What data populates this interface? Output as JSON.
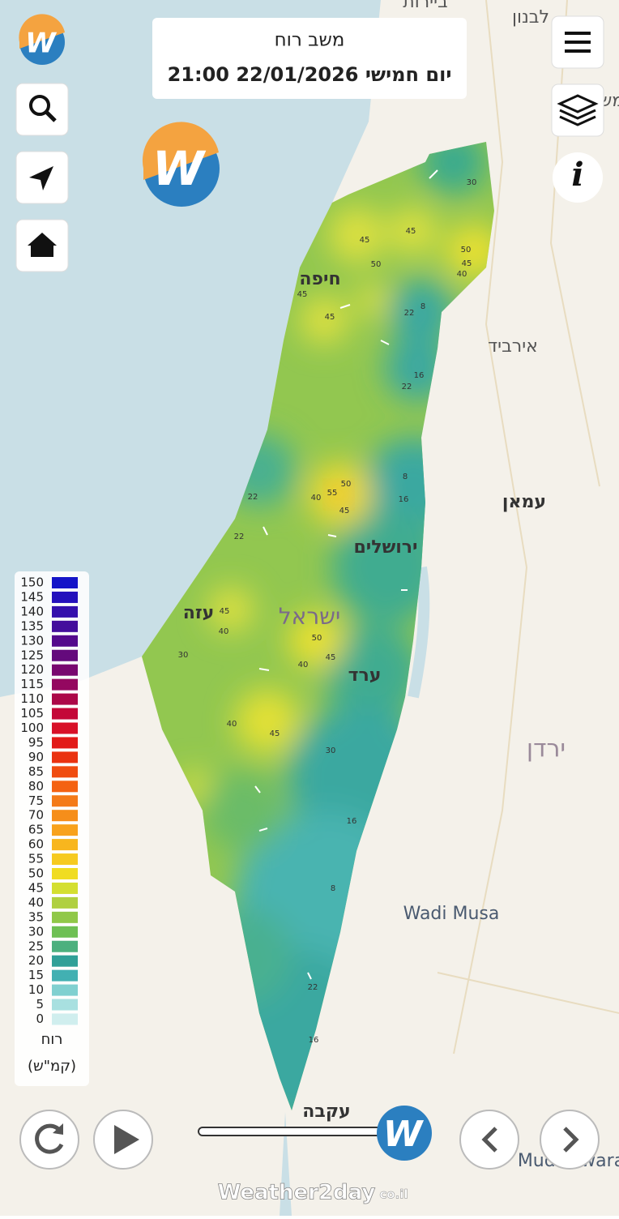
{
  "header": {
    "title": "משב רוח",
    "date": "יום חמישי 22/01/2026 21:00"
  },
  "map_labels": {
    "beirut": "ביירות",
    "lebanon": "לבנון",
    "cut_label": "מש",
    "haifa": "חיפה",
    "irbid": "אירביד",
    "amman": "עמאן",
    "jerusalem": "ירושלים",
    "gaza": "עזה",
    "israel": "ישראל",
    "arad": "ערד",
    "jordan": "ירדן",
    "wadi_musa": "Wadi Musa",
    "aqaba": "עקבה",
    "mudawwara": "Mudawwara"
  },
  "contour_labels": [
    30,
    45,
    45,
    50,
    50,
    45,
    40,
    45,
    45,
    22,
    8,
    16,
    22,
    8,
    16,
    50,
    55,
    40,
    45,
    22,
    22,
    45,
    40,
    30,
    50,
    45,
    40,
    40,
    45,
    30,
    16,
    8,
    22,
    16
  ],
  "legend": {
    "title": "רוח",
    "unit": "(קמ\"ש)",
    "items": [
      {
        "value": 150,
        "color": "#1414c8"
      },
      {
        "value": 145,
        "color": "#2410bc"
      },
      {
        "value": 140,
        "color": "#3410ac"
      },
      {
        "value": 135,
        "color": "#440e9c"
      },
      {
        "value": 130,
        "color": "#540a8c"
      },
      {
        "value": 125,
        "color": "#640a7c"
      },
      {
        "value": 120,
        "color": "#780870"
      },
      {
        "value": 115,
        "color": "#940860"
      },
      {
        "value": 110,
        "color": "#ac0848"
      },
      {
        "value": 105,
        "color": "#c40838"
      },
      {
        "value": 100,
        "color": "#d81028"
      },
      {
        "value": 95,
        "color": "#e21a18"
      },
      {
        "value": 90,
        "color": "#ea3210"
      },
      {
        "value": 85,
        "color": "#f04c10"
      },
      {
        "value": 80,
        "color": "#f46212"
      },
      {
        "value": 75,
        "color": "#f47a18"
      },
      {
        "value": 70,
        "color": "#f68e1a"
      },
      {
        "value": 65,
        "color": "#f8a21c"
      },
      {
        "value": 60,
        "color": "#f8b61e"
      },
      {
        "value": 55,
        "color": "#f6ca20"
      },
      {
        "value": 50,
        "color": "#f0dc22"
      },
      {
        "value": 45,
        "color": "#d4df30"
      },
      {
        "value": 40,
        "color": "#b0d040"
      },
      {
        "value": 35,
        "color": "#90c848"
      },
      {
        "value": 30,
        "color": "#6ec054"
      },
      {
        "value": 25,
        "color": "#4cb07e"
      },
      {
        "value": 20,
        "color": "#30a098"
      },
      {
        "value": 15,
        "color": "#42b0b2"
      },
      {
        "value": 10,
        "color": "#80d0d0"
      },
      {
        "value": 5,
        "color": "#a8e0e0"
      },
      {
        "value": 0,
        "color": "#d0eeee"
      }
    ]
  },
  "footer": {
    "brand": "Weather2day",
    "suffix": "co.il"
  }
}
